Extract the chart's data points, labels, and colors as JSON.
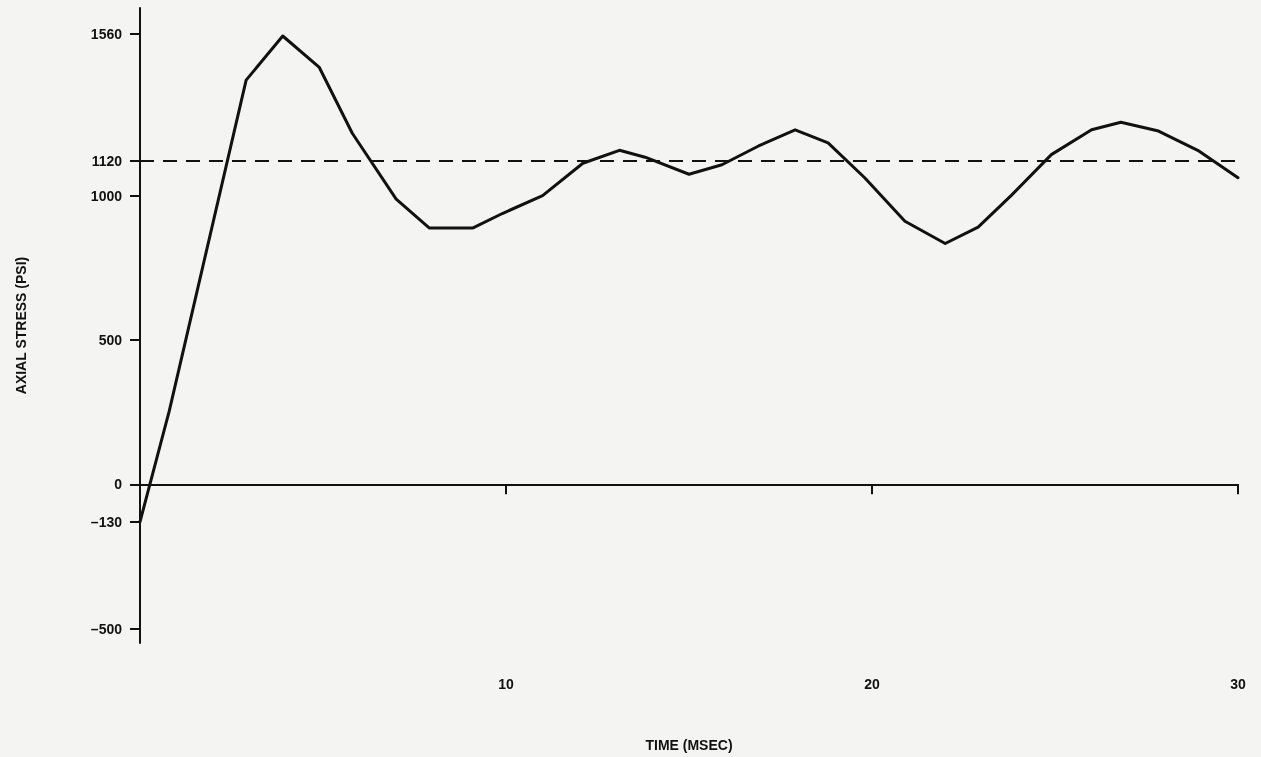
{
  "chart_data": {
    "type": "line",
    "xlabel": "TIME (MSEC)",
    "ylabel": "AXIAL STRESS (PSI)",
    "xlim": [
      0,
      30
    ],
    "xticks": [
      10,
      20,
      30
    ],
    "ylim": [
      -550,
      1650
    ],
    "yticks": [
      {
        "value": -500,
        "label": "–500"
      },
      {
        "value": -130,
        "label": "–130"
      },
      0,
      500,
      1000,
      1120,
      1560
    ],
    "series": [
      {
        "color": "#111111",
        "x": [
          0,
          0.8,
          1.8,
          2.9,
          3.9,
          4.9,
          5.8,
          7.0,
          7.9,
          9.1,
          9.9,
          11,
          12.1,
          13.1,
          13.8,
          15.0,
          15.9,
          16.9,
          17.9,
          18.8,
          19.8,
          20.9,
          22,
          22.9,
          23.8,
          24.9,
          26,
          26.8,
          27.8,
          28.9,
          30
        ],
        "values": [
          -130,
          254,
          800,
          1400,
          1553,
          1444,
          1216,
          988,
          888,
          888,
          938,
          1000,
          1112,
          1157,
          1133,
          1074,
          1107,
          1172,
          1228,
          1183,
          1062,
          911,
          834,
          891,
          1000,
          1142,
          1228,
          1254,
          1225,
          1157,
          1062
        ]
      }
    ],
    "ref_lines": [
      {
        "axis": "y",
        "value": 1120,
        "color": "#111111",
        "line_style": "dashed"
      }
    ],
    "grid": false,
    "marker": "none",
    "line_style": "solid"
  }
}
